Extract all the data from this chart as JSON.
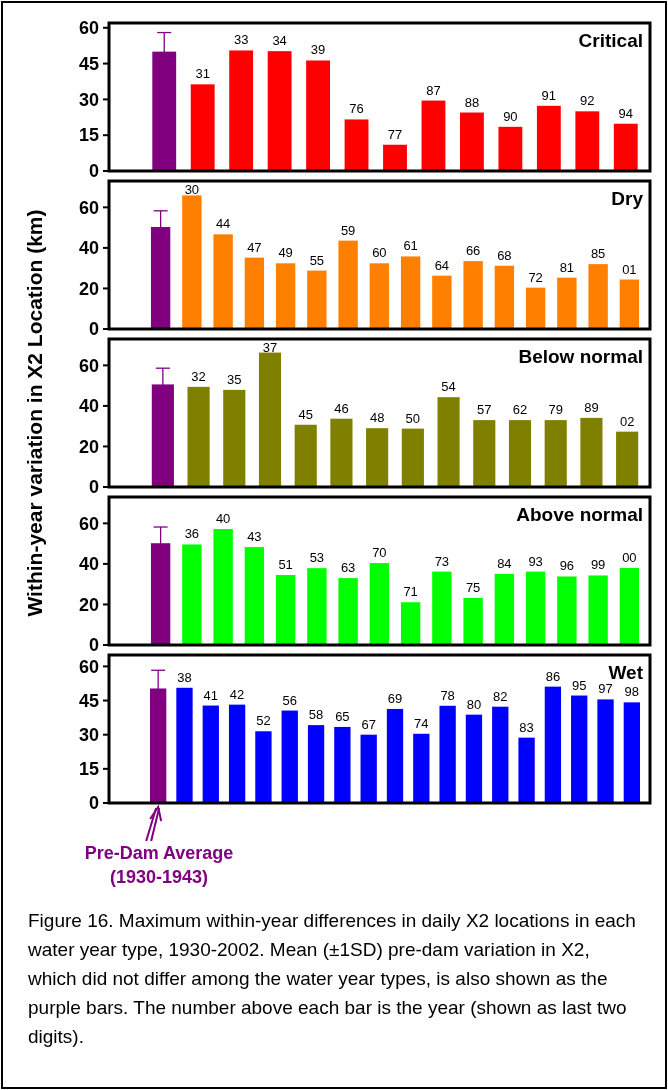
{
  "chart_data": [
    {
      "type": "bar",
      "title": "Critical",
      "categories": [
        null,
        "31",
        "33",
        "34",
        "39",
        "76",
        "77",
        "87",
        "88",
        "90",
        "91",
        "92",
        "94"
      ],
      "values": [
        50,
        36.3,
        50.5,
        50.2,
        46.3,
        21.6,
        11,
        29.5,
        24.5,
        18.5,
        27.3,
        25,
        19.8
      ],
      "errors": [
        8,
        null,
        null,
        null,
        null,
        null,
        null,
        null,
        null,
        null,
        null,
        null,
        null
      ],
      "colors": [
        "#800080",
        "#ff0000",
        "#ff0000",
        "#ff0000",
        "#ff0000",
        "#ff0000",
        "#ff0000",
        "#ff0000",
        "#ff0000",
        "#ff0000",
        "#ff0000",
        "#ff0000",
        "#ff0000"
      ],
      "ylim": [
        0,
        62
      ],
      "yticks": [
        0,
        15,
        30,
        45,
        60
      ]
    },
    {
      "type": "bar",
      "title": "Dry",
      "categories": [
        null,
        "30",
        "44",
        "47",
        "49",
        "55",
        "59",
        "60",
        "61",
        "64",
        "66",
        "68",
        "72",
        "81",
        "85",
        "01"
      ],
      "values": [
        50.3,
        65.9,
        46.7,
        35.2,
        32.4,
        28.8,
        43.6,
        32.4,
        35.8,
        26.3,
        33.5,
        31.2,
        20.4,
        25.3,
        32,
        24.4
      ],
      "errors": [
        8,
        null,
        null,
        null,
        null,
        null,
        null,
        null,
        null,
        null,
        null,
        null,
        null,
        null,
        null,
        null
      ],
      "colors": [
        "#800080",
        "#ff8000",
        "#ff8000",
        "#ff8000",
        "#ff8000",
        "#ff8000",
        "#ff8000",
        "#ff8000",
        "#ff8000",
        "#ff8000",
        "#ff8000",
        "#ff8000",
        "#ff8000",
        "#ff8000",
        "#ff8000",
        "#ff8000"
      ],
      "ylim": [
        0,
        73
      ],
      "yticks": [
        0,
        20,
        40,
        60
      ]
    },
    {
      "type": "bar",
      "title": "Below normal",
      "ylabel": "Within-year variation in X2 Location (km)",
      "categories": [
        null,
        "32",
        "35",
        "37",
        "45",
        "46",
        "48",
        "50",
        "54",
        "57",
        "62",
        "79",
        "89",
        "02"
      ],
      "values": [
        50.6,
        49.4,
        47.9,
        66.3,
        30.7,
        33.7,
        29,
        28.8,
        44.3,
        33,
        33,
        33,
        34.1,
        27.3
      ],
      "errors": [
        8,
        null,
        null,
        null,
        null,
        null,
        null,
        null,
        null,
        null,
        null,
        null,
        null,
        null
      ],
      "colors": [
        "#800080",
        "#808000",
        "#808000",
        "#808000",
        "#808000",
        "#808000",
        "#808000",
        "#808000",
        "#808000",
        "#808000",
        "#808000",
        "#808000",
        "#808000",
        "#808000"
      ],
      "ylim": [
        0,
        73
      ],
      "yticks": [
        0,
        20,
        40,
        60
      ]
    },
    {
      "type": "bar",
      "title": "Above normal",
      "categories": [
        null,
        "36",
        "40",
        "43",
        "51",
        "53",
        "63",
        "70",
        "71",
        "73",
        "75",
        "84",
        "93",
        "96",
        "99",
        "00"
      ],
      "values": [
        50.2,
        49.6,
        57.2,
        48.3,
        34.5,
        37.9,
        33,
        40.4,
        21.1,
        36.2,
        23.2,
        35.1,
        36.2,
        33.8,
        34.3,
        38
      ],
      "errors": [
        8,
        null,
        null,
        null,
        null,
        null,
        null,
        null,
        null,
        null,
        null,
        null,
        null,
        null,
        null,
        null
      ],
      "colors": [
        "#800080",
        "#00ff00",
        "#00ff00",
        "#00ff00",
        "#00ff00",
        "#00ff00",
        "#00ff00",
        "#00ff00",
        "#00ff00",
        "#00ff00",
        "#00ff00",
        "#00ff00",
        "#00ff00",
        "#00ff00",
        "#00ff00",
        "#00ff00"
      ],
      "ylim": [
        0,
        73
      ],
      "yticks": [
        0,
        20,
        40,
        60
      ]
    },
    {
      "type": "bar",
      "title": "Wet",
      "categories": [
        null,
        "38",
        "41",
        "42",
        "52",
        "56",
        "58",
        "65",
        "67",
        "69",
        "74",
        "78",
        "80",
        "82",
        "83",
        "86",
        "95",
        "97",
        "98"
      ],
      "values": [
        50.3,
        50.6,
        42.8,
        43.2,
        31.5,
        40.6,
        34.2,
        33.4,
        30,
        41.3,
        30.4,
        42.7,
        38.8,
        42.3,
        28.7,
        51.1,
        47.2,
        45.5,
        44.2
      ],
      "errors": [
        8,
        null,
        null,
        null,
        null,
        null,
        null,
        null,
        null,
        null,
        null,
        null,
        null,
        null,
        null,
        null,
        null,
        null,
        null
      ],
      "colors": [
        "#800080",
        "#0000ff",
        "#0000ff",
        "#0000ff",
        "#0000ff",
        "#0000ff",
        "#0000ff",
        "#0000ff",
        "#0000ff",
        "#0000ff",
        "#0000ff",
        "#0000ff",
        "#0000ff",
        "#0000ff",
        "#0000ff",
        "#0000ff",
        "#0000ff",
        "#0000ff",
        "#0000ff"
      ],
      "ylim": [
        0,
        65
      ],
      "yticks": [
        0,
        15,
        30,
        45,
        60
      ],
      "annotations": [
        "Pre-Dam Average (1930-1943)",
        "Figure 16. Maximum within-year differences in daily X2 locations in each water year type, 1930-2002.  Mean (±1SD) pre-dam variation in X2, which did not differ among the water year types, is also shown as the purple bars.  The number above each bar is the year (shown as last two digits)."
      ]
    }
  ]
}
